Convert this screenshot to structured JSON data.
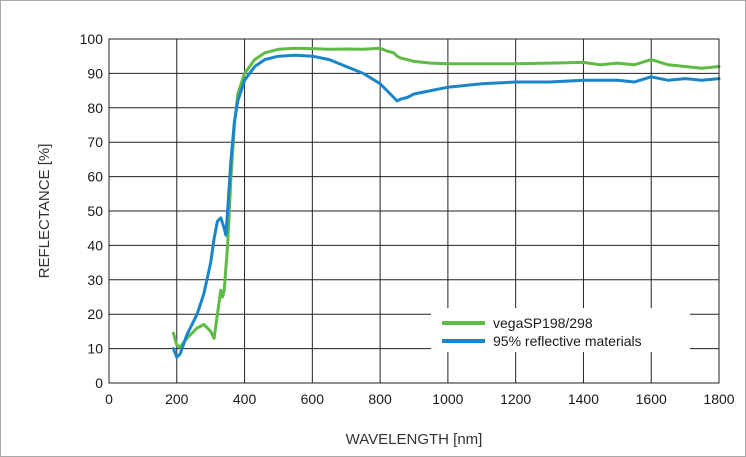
{
  "chart_data": {
    "type": "line",
    "title": "",
    "xlabel": "WAVELENGTH [nm]",
    "ylabel": "REFLECTANCE [%]",
    "xlim": [
      0,
      1800
    ],
    "ylim": [
      0,
      100
    ],
    "xticks": [
      0,
      200,
      400,
      600,
      800,
      1000,
      1200,
      1400,
      1600,
      1800
    ],
    "yticks": [
      0,
      10,
      20,
      30,
      40,
      50,
      60,
      70,
      80,
      90,
      100
    ],
    "grid": true,
    "legend_position": "lower-right",
    "series": [
      {
        "name": "vegaSP198/298",
        "color": "#5dbb46",
        "x": [
          190,
          200,
          210,
          230,
          260,
          280,
          300,
          310,
          320,
          330,
          335,
          340,
          350,
          360,
          370,
          380,
          400,
          430,
          460,
          500,
          550,
          600,
          650,
          700,
          750,
          800,
          820,
          840,
          850,
          860,
          880,
          900,
          950,
          1000,
          1100,
          1200,
          1300,
          1400,
          1450,
          1500,
          1550,
          1600,
          1650,
          1700,
          1750,
          1800
        ],
        "y": [
          14.5,
          11,
          10.5,
          13,
          16,
          17,
          15,
          13,
          20,
          27,
          25,
          27,
          40,
          60,
          75,
          84,
          90,
          94,
          96,
          97,
          97.3,
          97.2,
          97,
          97.1,
          97,
          97.3,
          96.5,
          96,
          95,
          94.5,
          94,
          93.5,
          93,
          92.8,
          92.8,
          92.8,
          93,
          93.2,
          92.5,
          93,
          92.5,
          94,
          92.5,
          92,
          91.5,
          92
        ]
      },
      {
        "name": "95% reflective materials",
        "color": "#1a85c8",
        "x": [
          190,
          200,
          210,
          230,
          260,
          280,
          300,
          310,
          320,
          330,
          340,
          345,
          350,
          360,
          370,
          380,
          400,
          430,
          460,
          500,
          550,
          600,
          650,
          700,
          750,
          800,
          830,
          850,
          860,
          880,
          900,
          950,
          1000,
          1100,
          1200,
          1300,
          1400,
          1500,
          1550,
          1600,
          1650,
          1700,
          1750,
          1800
        ],
        "y": [
          10,
          7.5,
          8.5,
          14,
          20,
          26,
          35,
          42,
          47,
          48,
          45,
          43,
          50,
          65,
          76,
          82,
          88,
          92,
          94,
          95,
          95.3,
          95,
          94,
          92,
          90,
          87,
          84,
          82,
          82.5,
          83,
          84,
          85,
          86,
          87,
          87.5,
          87.5,
          88,
          88,
          87.5,
          89,
          88,
          88.5,
          88,
          88.5
        ]
      }
    ]
  }
}
